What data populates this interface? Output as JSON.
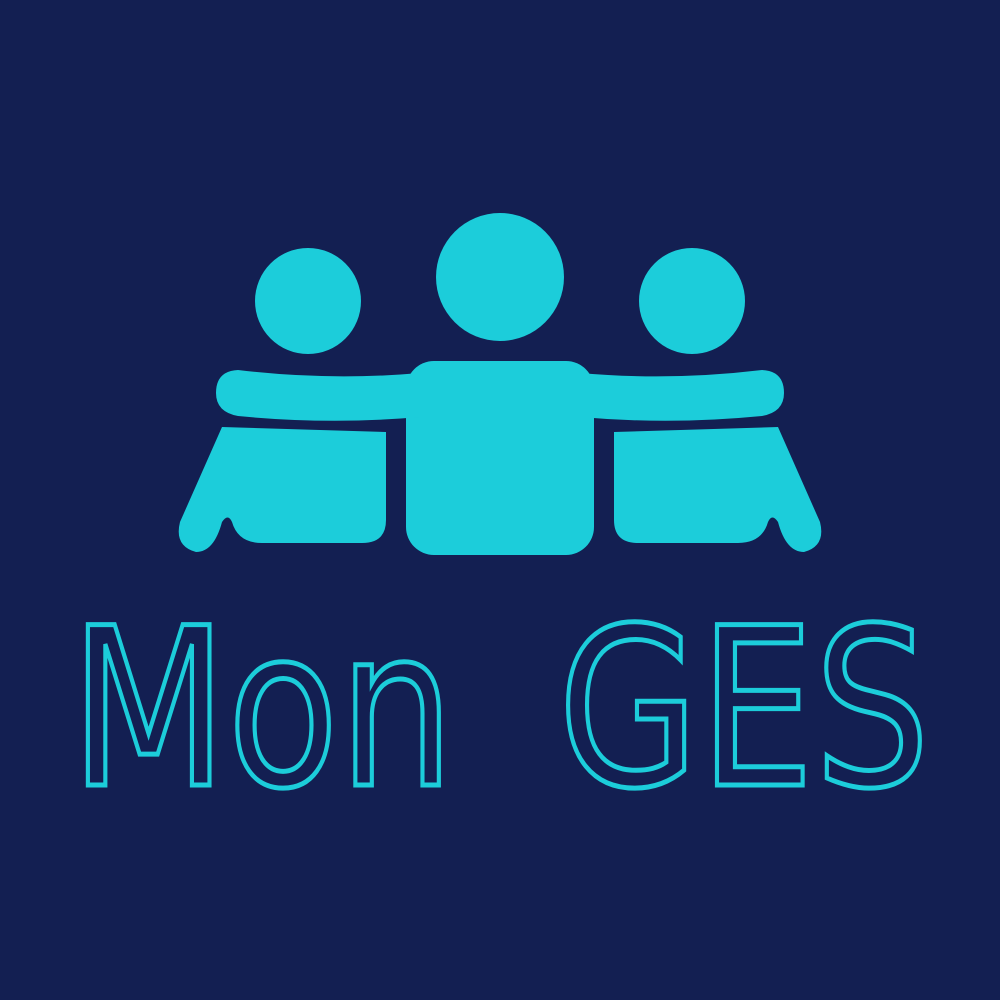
{
  "app": {
    "name": "Mon GES"
  },
  "logo": {
    "icon": "group-of-people-icon",
    "wordmark_parts": [
      "Mon",
      "GES"
    ]
  },
  "colors": {
    "background": "#131f52",
    "accent": "#1ccdda"
  }
}
